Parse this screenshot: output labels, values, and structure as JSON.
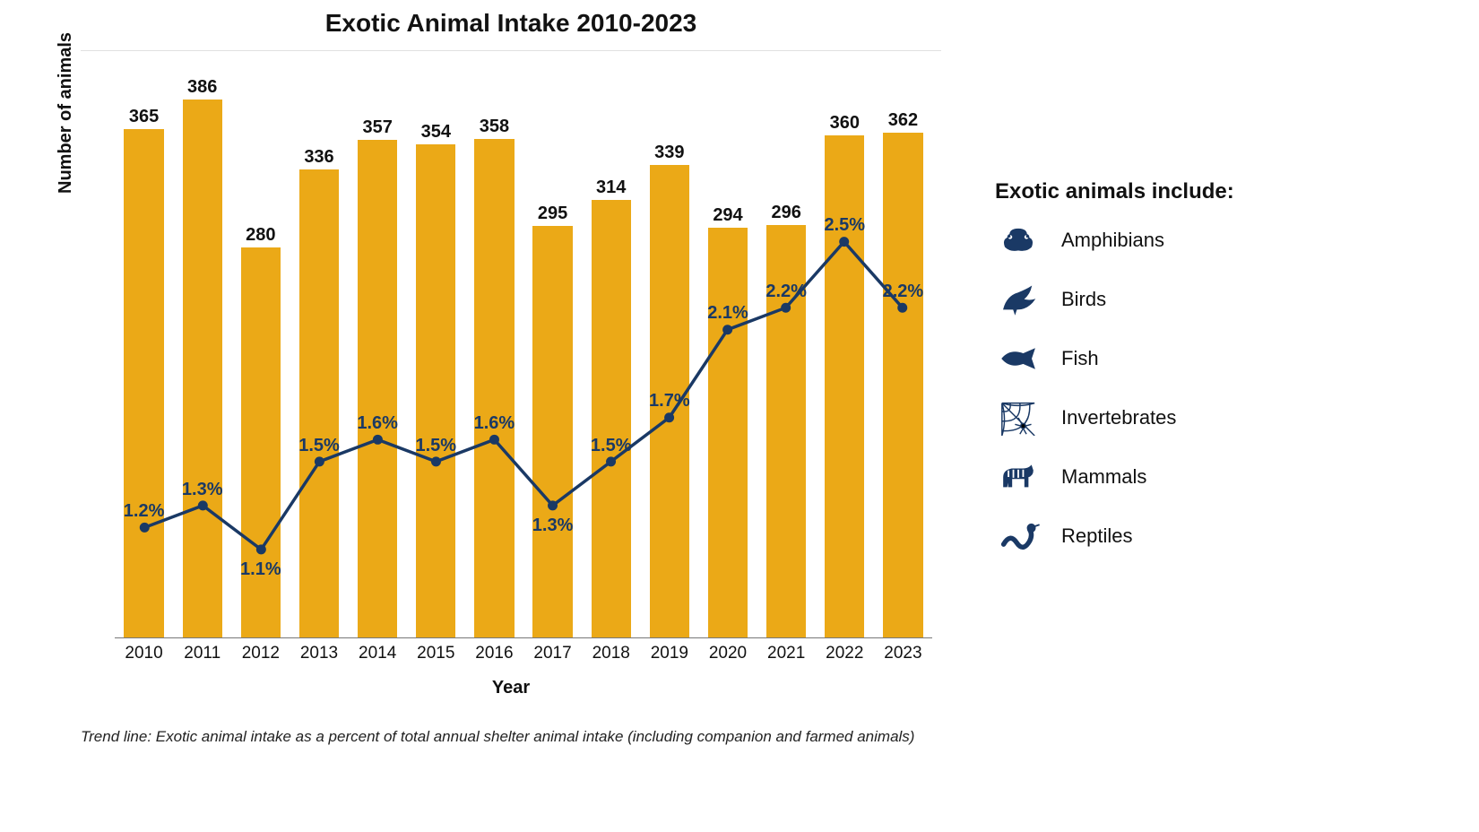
{
  "title": "Exotic Animal Intake 2010-2023",
  "title_fontsize": 28,
  "caption": "Trend line: Exotic animal intake as a percent of total annual shelter animal intake (including companion and farmed animals)",
  "caption_fontsize": 17,
  "axes": {
    "y_label": "Number of animals",
    "x_label": "Year",
    "label_fontsize": 20,
    "tick_fontsize": 19
  },
  "chart": {
    "type": "bar+line",
    "categories": [
      "2010",
      "2011",
      "2012",
      "2013",
      "2014",
      "2015",
      "2016",
      "2017",
      "2018",
      "2019",
      "2020",
      "2021",
      "2022",
      "2023"
    ],
    "bar_values": [
      365,
      386,
      280,
      336,
      357,
      354,
      358,
      295,
      314,
      339,
      294,
      296,
      360,
      362
    ],
    "line_values_pct": [
      1.2,
      1.3,
      1.1,
      1.5,
      1.6,
      1.5,
      1.6,
      1.3,
      1.5,
      1.7,
      2.1,
      2.2,
      2.5,
      2.2
    ],
    "line_label_positions": [
      "above",
      "above",
      "below",
      "above",
      "above",
      "above",
      "above",
      "below",
      "above",
      "above",
      "above",
      "above",
      "above",
      "above"
    ],
    "y_max_bar": 395,
    "pct_y_min": 0.7,
    "pct_y_max": 3.2,
    "bar_color": "#eba917",
    "line_color": "#1a3965",
    "marker_color": "#1a3965",
    "bar_label_color": "#111111",
    "pct_label_color": "#1a3965",
    "background_color": "#ffffff",
    "bar_width_ratio": 0.68,
    "bar_label_fontsize": 20,
    "pct_label_fontsize": 20,
    "line_width": 3.5,
    "marker_radius": 5.5
  },
  "legend": {
    "title": "Exotic animals include:",
    "title_fontsize": 24,
    "item_fontsize": 22,
    "icon_color": "#1a3965",
    "items": [
      {
        "icon": "frog-icon",
        "label": "Amphibians"
      },
      {
        "icon": "bird-icon",
        "label": "Birds"
      },
      {
        "icon": "fish-icon",
        "label": "Fish"
      },
      {
        "icon": "web-icon",
        "label": "Invertebrates"
      },
      {
        "icon": "zebra-icon",
        "label": "Mammals"
      },
      {
        "icon": "snake-icon",
        "label": "Reptiles"
      }
    ]
  }
}
